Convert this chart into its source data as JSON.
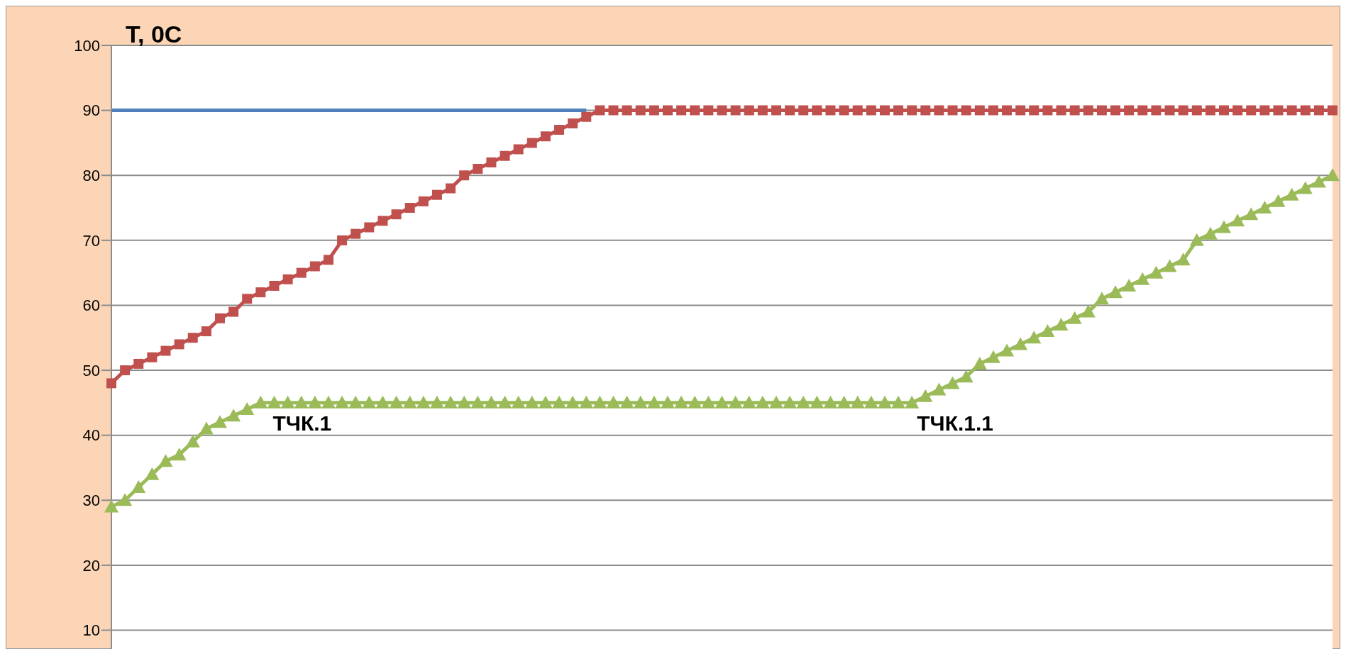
{
  "chart_data": {
    "type": "line",
    "ylabel": "T, 0C",
    "categories": [
      null,
      null,
      null,
      null,
      null,
      null,
      null,
      null,
      null,
      null,
      null,
      null,
      null,
      null,
      null,
      null,
      null,
      null,
      null,
      null,
      null,
      null,
      null,
      null,
      null,
      null,
      null,
      null,
      null,
      null,
      null,
      null,
      null,
      null,
      null,
      null,
      null,
      null,
      null,
      null,
      null,
      null,
      null,
      null,
      null,
      null,
      null,
      null,
      null,
      null,
      null,
      null,
      null,
      null,
      null,
      null,
      null,
      null,
      null,
      null,
      null,
      null,
      null,
      null,
      null,
      null,
      null,
      null,
      null,
      null,
      null,
      null,
      null,
      null,
      null,
      null,
      null,
      null,
      null,
      null,
      null,
      null,
      null,
      null,
      null,
      null,
      null,
      null,
      null,
      null,
      null
    ],
    "series": [
      {
        "color": "#4f81bd",
        "marker": "none",
        "values": [
          90,
          90,
          90,
          90,
          90,
          90,
          90,
          90,
          90,
          90,
          90,
          90,
          90,
          90,
          90,
          90,
          90,
          90,
          90,
          90,
          90,
          90,
          90,
          90,
          90,
          90,
          90,
          90,
          90,
          90,
          90,
          90,
          90,
          90,
          90,
          90,
          null,
          null,
          null,
          null,
          null,
          null,
          null,
          null,
          null,
          null,
          null,
          null,
          null,
          null,
          null,
          null,
          null,
          null,
          null,
          null,
          null,
          null,
          null,
          null,
          null,
          null,
          null,
          null,
          null,
          null,
          null,
          null,
          null,
          null,
          null,
          null,
          null,
          null,
          null,
          null,
          null,
          null,
          null,
          null,
          null,
          null,
          null,
          null,
          null,
          null,
          null,
          null,
          null,
          null,
          null
        ]
      },
      {
        "color": "#c0504d",
        "marker": "square",
        "values": [
          48,
          50,
          51,
          52,
          53,
          54,
          55,
          56,
          58,
          59,
          61,
          62,
          63,
          64,
          65,
          66,
          67,
          70,
          71,
          72,
          73,
          74,
          75,
          76,
          77,
          78,
          80,
          81,
          82,
          83,
          84,
          85,
          86,
          87,
          88,
          89,
          90,
          90,
          90,
          90,
          90,
          90,
          90,
          90,
          90,
          90,
          90,
          90,
          90,
          90,
          90,
          90,
          90,
          90,
          90,
          90,
          90,
          90,
          90,
          90,
          90,
          90,
          90,
          90,
          90,
          90,
          90,
          90,
          90,
          90,
          90,
          90,
          90,
          90,
          90,
          90,
          90,
          90,
          90,
          90,
          90,
          90,
          90,
          90,
          90,
          90,
          90,
          90,
          90,
          90,
          90
        ]
      },
      {
        "color": "#9bbb59",
        "marker": "triangle",
        "values": [
          29,
          30,
          32,
          34,
          36,
          37,
          39,
          41,
          42,
          43,
          44,
          45,
          45,
          45,
          45,
          45,
          45,
          45,
          45,
          45,
          45,
          45,
          45,
          45,
          45,
          45,
          45,
          45,
          45,
          45,
          45,
          45,
          45,
          45,
          45,
          45,
          45,
          45,
          45,
          45,
          45,
          45,
          45,
          45,
          45,
          45,
          45,
          45,
          45,
          45,
          45,
          45,
          45,
          45,
          45,
          45,
          45,
          45,
          45,
          45,
          46,
          47,
          48,
          49,
          51,
          52,
          53,
          54,
          55,
          56,
          57,
          58,
          59,
          61,
          62,
          63,
          64,
          65,
          66,
          67,
          70,
          71,
          72,
          73,
          74,
          75,
          76,
          77,
          78,
          79,
          80
        ]
      }
    ],
    "annotations": [
      "ТЧК.1",
      "ТЧК.1.1"
    ],
    "ylim": [
      7,
      100
    ],
    "yticks": [
      10,
      20,
      30,
      40,
      50,
      60,
      70,
      80,
      90,
      100
    ],
    "grid": "y",
    "tick_labels": "y"
  }
}
